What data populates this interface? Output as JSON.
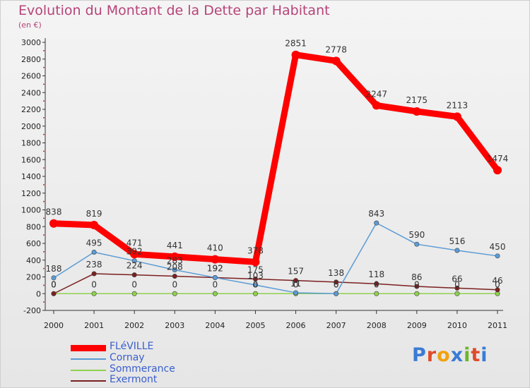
{
  "header": {
    "title": "Evolution du Montant de la Dette par Habitant",
    "subtitle": "(en €)"
  },
  "logo": {
    "text": "Proxiti"
  },
  "chart_data": {
    "type": "line",
    "title": "Evolution du Montant de la Dette par Habitant",
    "subtitle": "(en €)",
    "x": [
      "2000",
      "2001",
      "2002",
      "2003",
      "2004",
      "2005",
      "2006",
      "2007",
      "2008",
      "2009",
      "2010",
      "2011"
    ],
    "ylim": [
      -200,
      3000
    ],
    "yticks": [
      -200,
      0,
      200,
      400,
      600,
      800,
      1000,
      1200,
      1400,
      1600,
      1800,
      2000,
      2200,
      2400,
      2600,
      2800,
      3000
    ],
    "grid": false,
    "legend_position": "bottom-left",
    "series": [
      {
        "name": "FLéVILLE",
        "color": "#ff0000",
        "values": [
          838,
          819,
          471,
          441,
          410,
          378,
          2851,
          2778,
          2247,
          2175,
          2113,
          1474
        ],
        "labels": [
          "838",
          "819",
          "471",
          "441",
          "410",
          "378",
          "2851",
          "2778",
          "2247",
          "2175",
          "2113",
          "1474"
        ]
      },
      {
        "name": "Cornay",
        "color": "#5b9bd5",
        "values": [
          188,
          495,
          392,
          283,
          192,
          103,
          11,
          0,
          843,
          590,
          516,
          450
        ],
        "labels": [
          "188",
          "495",
          "392",
          "283",
          "192",
          "103",
          "11",
          "0",
          "843",
          "590",
          "516",
          "450"
        ]
      },
      {
        "name": "Sommerance",
        "color": "#8fd14f",
        "values": [
          0,
          0,
          0,
          0,
          0,
          0,
          0,
          0,
          0,
          0,
          0,
          0
        ],
        "labels": [
          "0",
          "0",
          "0",
          "0",
          "0",
          "0",
          "0",
          "0",
          "0",
          "0",
          "0",
          "0"
        ]
      },
      {
        "name": "Exermont",
        "color": "#7b2020",
        "values": [
          0,
          238,
          224,
          208,
          192,
          175,
          157,
          138,
          118,
          86,
          66,
          46
        ],
        "labels": [
          "0",
          "238",
          "224",
          "208",
          "192",
          "175",
          "157",
          "138",
          "118",
          "86",
          "66",
          "46"
        ]
      }
    ]
  }
}
